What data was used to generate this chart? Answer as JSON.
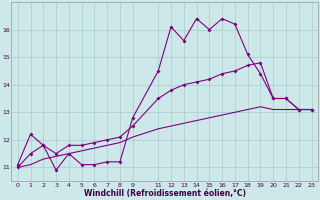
{
  "xlabel": "Windchill (Refroidissement éolien,°C)",
  "background_color": "#cce8e8",
  "line_color": "#800080",
  "xlim": [
    -0.5,
    23.5
  ],
  "ylim": [
    10.5,
    17.0
  ],
  "xtick_positions": [
    0,
    1,
    2,
    3,
    4,
    5,
    6,
    7,
    8,
    9,
    11,
    12,
    13,
    14,
    15,
    16,
    17,
    18,
    19,
    20,
    21,
    22,
    23
  ],
  "xtick_labels": [
    "0",
    "1",
    "2",
    "3",
    "4",
    "5",
    "6",
    "7",
    "8",
    "9",
    "11",
    "12",
    "13",
    "14",
    "15",
    "16",
    "17",
    "18",
    "19",
    "20",
    "21",
    "22",
    "23"
  ],
  "ytick_positions": [
    11,
    12,
    13,
    14,
    15,
    16
  ],
  "ytick_labels": [
    "11",
    "12",
    "13",
    "14",
    "15",
    "16"
  ],
  "line1_x": [
    0,
    1,
    2,
    3,
    4,
    5,
    6,
    7,
    8,
    9,
    11,
    12,
    13,
    14,
    15,
    16,
    17,
    18,
    19,
    20,
    21,
    22,
    23
  ],
  "line1_y": [
    11.1,
    12.2,
    11.8,
    10.9,
    11.5,
    11.1,
    11.1,
    11.2,
    11.2,
    12.8,
    14.5,
    16.1,
    15.6,
    16.4,
    16.0,
    16.4,
    16.2,
    15.1,
    14.4,
    13.5,
    13.5,
    13.1,
    13.1
  ],
  "line2_x": [
    0,
    1,
    2,
    3,
    4,
    5,
    6,
    7,
    8,
    9,
    11,
    12,
    13,
    14,
    15,
    16,
    17,
    18,
    19,
    20,
    21,
    22,
    23
  ],
  "line2_y": [
    11.0,
    11.5,
    11.8,
    11.5,
    11.8,
    11.8,
    11.9,
    12.0,
    12.1,
    12.5,
    13.5,
    13.8,
    14.0,
    14.1,
    14.2,
    14.4,
    14.5,
    14.7,
    14.8,
    13.5,
    13.5,
    13.1,
    13.1
  ],
  "line3_x": [
    0,
    1,
    2,
    3,
    4,
    5,
    6,
    7,
    8,
    9,
    11,
    12,
    13,
    14,
    15,
    16,
    17,
    18,
    19,
    20,
    21,
    22,
    23
  ],
  "line3_y": [
    11.0,
    11.1,
    11.3,
    11.4,
    11.5,
    11.6,
    11.7,
    11.8,
    11.9,
    12.1,
    12.4,
    12.5,
    12.6,
    12.7,
    12.8,
    12.9,
    13.0,
    13.1,
    13.2,
    13.1,
    13.1,
    13.1,
    13.1
  ],
  "marker_style": "D",
  "marker_size": 2.0,
  "line_width": 0.8,
  "xlabel_fontsize": 5.5,
  "tick_fontsize": 4.5,
  "xlabel_color": "#440044",
  "tick_color": "#440044",
  "grid_color": "#aacccc",
  "grid_lw": 0.5
}
